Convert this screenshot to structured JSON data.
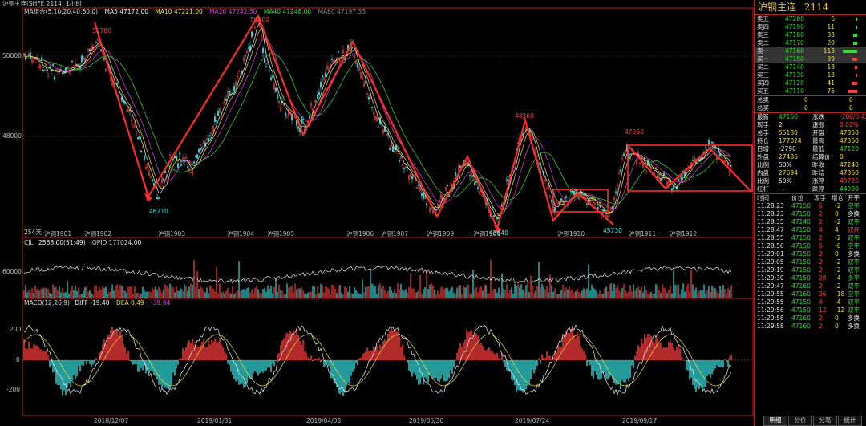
{
  "title_bar": "沪铜主连(SHFE 2114)  1小时",
  "main_legend": {
    "label": "MA组合(5,10,20,40,60,0)",
    "ma5": "MA5 47172.00",
    "ma10": "MA10 47221.00",
    "ma20": "MA20 47242.50",
    "ma40": "MA40 47248.00",
    "ma60": "MA60 47197.33"
  },
  "price_axis": [
    "50000",
    "48000"
  ],
  "annotations": [
    "50780",
    "50800",
    "46210",
    "48360",
    "47960",
    "45730",
    "45640"
  ],
  "bar_count": "254天",
  "contract_labels": [
    "沪铜1901",
    "沪铜1902",
    "沪铜1903",
    "沪铜1904",
    "沪铜1905",
    "沪铜1906",
    "沪铜1907",
    "沪铜1909",
    "沪铜1909",
    "沪铜1910",
    "沪铜1911",
    "沪铜1912"
  ],
  "vol_legend": {
    "label": "CJL",
    "value": "2568.00(51:49)",
    "opid": "OPID 177024.00"
  },
  "vol_axis": [
    "60000"
  ],
  "macd_legend": {
    "label": "MACD(12,26,9)",
    "diff": "DIFF -19.48",
    "dea": "DEA 0.49",
    "macd": "-39.94"
  },
  "macd_axis": [
    "200",
    "0",
    "-200"
  ],
  "date_axis": [
    "2018/12/07",
    "2019/01/31",
    "2019/04/03",
    "2019/05/30",
    "2019/07/24",
    "2019/09/17"
  ],
  "right_panel": {
    "title": "沪铜主连",
    "code": "2114",
    "asks": [
      {
        "label": "卖五",
        "price": "47200",
        "vol": "6",
        "level": 6
      },
      {
        "label": "卖四",
        "price": "47190",
        "vol": "11",
        "level": 11
      },
      {
        "label": "卖三",
        "price": "47180",
        "vol": "33",
        "level": 33
      },
      {
        "label": "卖二",
        "price": "47170",
        "vol": "29",
        "level": 29
      },
      {
        "label": "卖一",
        "price": "47160",
        "vol": "113",
        "level": 113
      }
    ],
    "bids": [
      {
        "label": "买一",
        "price": "47150",
        "vol": "39",
        "level": 39
      },
      {
        "label": "买二",
        "price": "47140",
        "vol": "18",
        "level": 18
      },
      {
        "label": "买三",
        "price": "47130",
        "vol": "13",
        "level": 13
      },
      {
        "label": "买四",
        "price": "47120",
        "vol": "41",
        "level": 41
      },
      {
        "label": "买五",
        "price": "47110",
        "vol": "75",
        "level": 75
      }
    ],
    "totals": [
      {
        "label": "总卖",
        "v1": "0",
        "v2": "0"
      },
      {
        "label": "总买",
        "v1": "0",
        "v2": "0"
      }
    ],
    "stats": [
      {
        "l1": "最新",
        "v1": "47160",
        "l2": "涨跌",
        "v2": "-200/0.42%"
      },
      {
        "l1": "现手",
        "v1": "2",
        "l2": "速涨",
        "v2": "0.02%"
      },
      {
        "l1": "总手",
        "v1": "55180",
        "l2": "开盘",
        "v2": "47350"
      },
      {
        "l1": "持仓",
        "v1": "177024",
        "l2": "最高",
        "v2": "47360"
      },
      {
        "l1": "日增",
        "v1": "-2790",
        "l2": "最低",
        "v2": "47120"
      },
      {
        "l1": "外盘",
        "v1": "27486",
        "l2": "结算价",
        "v2": "0"
      },
      {
        "l1": "比例",
        "v1": "50%",
        "l2": "昨收",
        "v2": "47240"
      },
      {
        "l1": "内盘",
        "v1": "27694",
        "l2": "昨结",
        "v2": "47360"
      },
      {
        "l1": "比例",
        "v1": "50%",
        "l2": "涨停",
        "v2": "49720"
      },
      {
        "l1": "杠杆",
        "v1": "----",
        "l2": "跌停",
        "v2": "44990"
      }
    ],
    "trade_header": {
      "time": "时间",
      "price": "价位",
      "qty": "现手",
      "chg": "增仓",
      "type": "开平"
    },
    "trades": [
      {
        "time": "11:28:23",
        "price": "47150",
        "qty": "6",
        "chg": "-2",
        "type": "空平"
      },
      {
        "time": "11:28:23",
        "price": "47150",
        "qty": "2",
        "chg": "0",
        "type": "多换"
      },
      {
        "time": "11:28:35",
        "price": "47140",
        "qty": "2",
        "chg": "-2",
        "type": "双平"
      },
      {
        "time": "11:28:47",
        "price": "47150",
        "qty": "4",
        "chg": "4",
        "type": "双开"
      },
      {
        "time": "11:28:55",
        "price": "47150",
        "qty": "2",
        "chg": "-2",
        "type": "双平"
      },
      {
        "time": "11:28:56",
        "price": "47150",
        "qty": "6",
        "chg": "-6",
        "type": "空平"
      },
      {
        "time": "11:29:01",
        "price": "47150",
        "qty": "2",
        "chg": "0",
        "type": "多换"
      },
      {
        "time": "11:29:05",
        "price": "47150",
        "qty": "2",
        "chg": "-2",
        "type": "双平"
      },
      {
        "time": "11:29:19",
        "price": "47150",
        "qty": "2",
        "chg": "-2",
        "type": "双平"
      },
      {
        "time": "11:29:30",
        "price": "47150",
        "qty": "28",
        "chg": "-4",
        "type": "多平"
      },
      {
        "time": "11:29:47",
        "price": "47160",
        "qty": "2",
        "chg": "-2",
        "type": "双平"
      },
      {
        "time": "11:29:55",
        "price": "47160",
        "qty": "36",
        "chg": "-18",
        "type": "空平"
      },
      {
        "time": "11:29:55",
        "price": "47150",
        "qty": "4",
        "chg": "-4",
        "type": "双平"
      },
      {
        "time": "11:29:56",
        "price": "47150",
        "qty": "12",
        "chg": "-12",
        "type": "双平"
      },
      {
        "time": "11:29:58",
        "price": "47160",
        "qty": "2",
        "chg": "0",
        "type": "多换"
      },
      {
        "time": "11:29:58",
        "price": "47160",
        "qty": "2",
        "chg": "0",
        "type": "多换"
      }
    ],
    "tabs": [
      "明细",
      "分价",
      "分笔",
      "统计"
    ]
  },
  "colors": {
    "up": "#ff3c3c",
    "down": "#33dddd",
    "trend": "#ff2a2a",
    "frame": "#b22222"
  }
}
